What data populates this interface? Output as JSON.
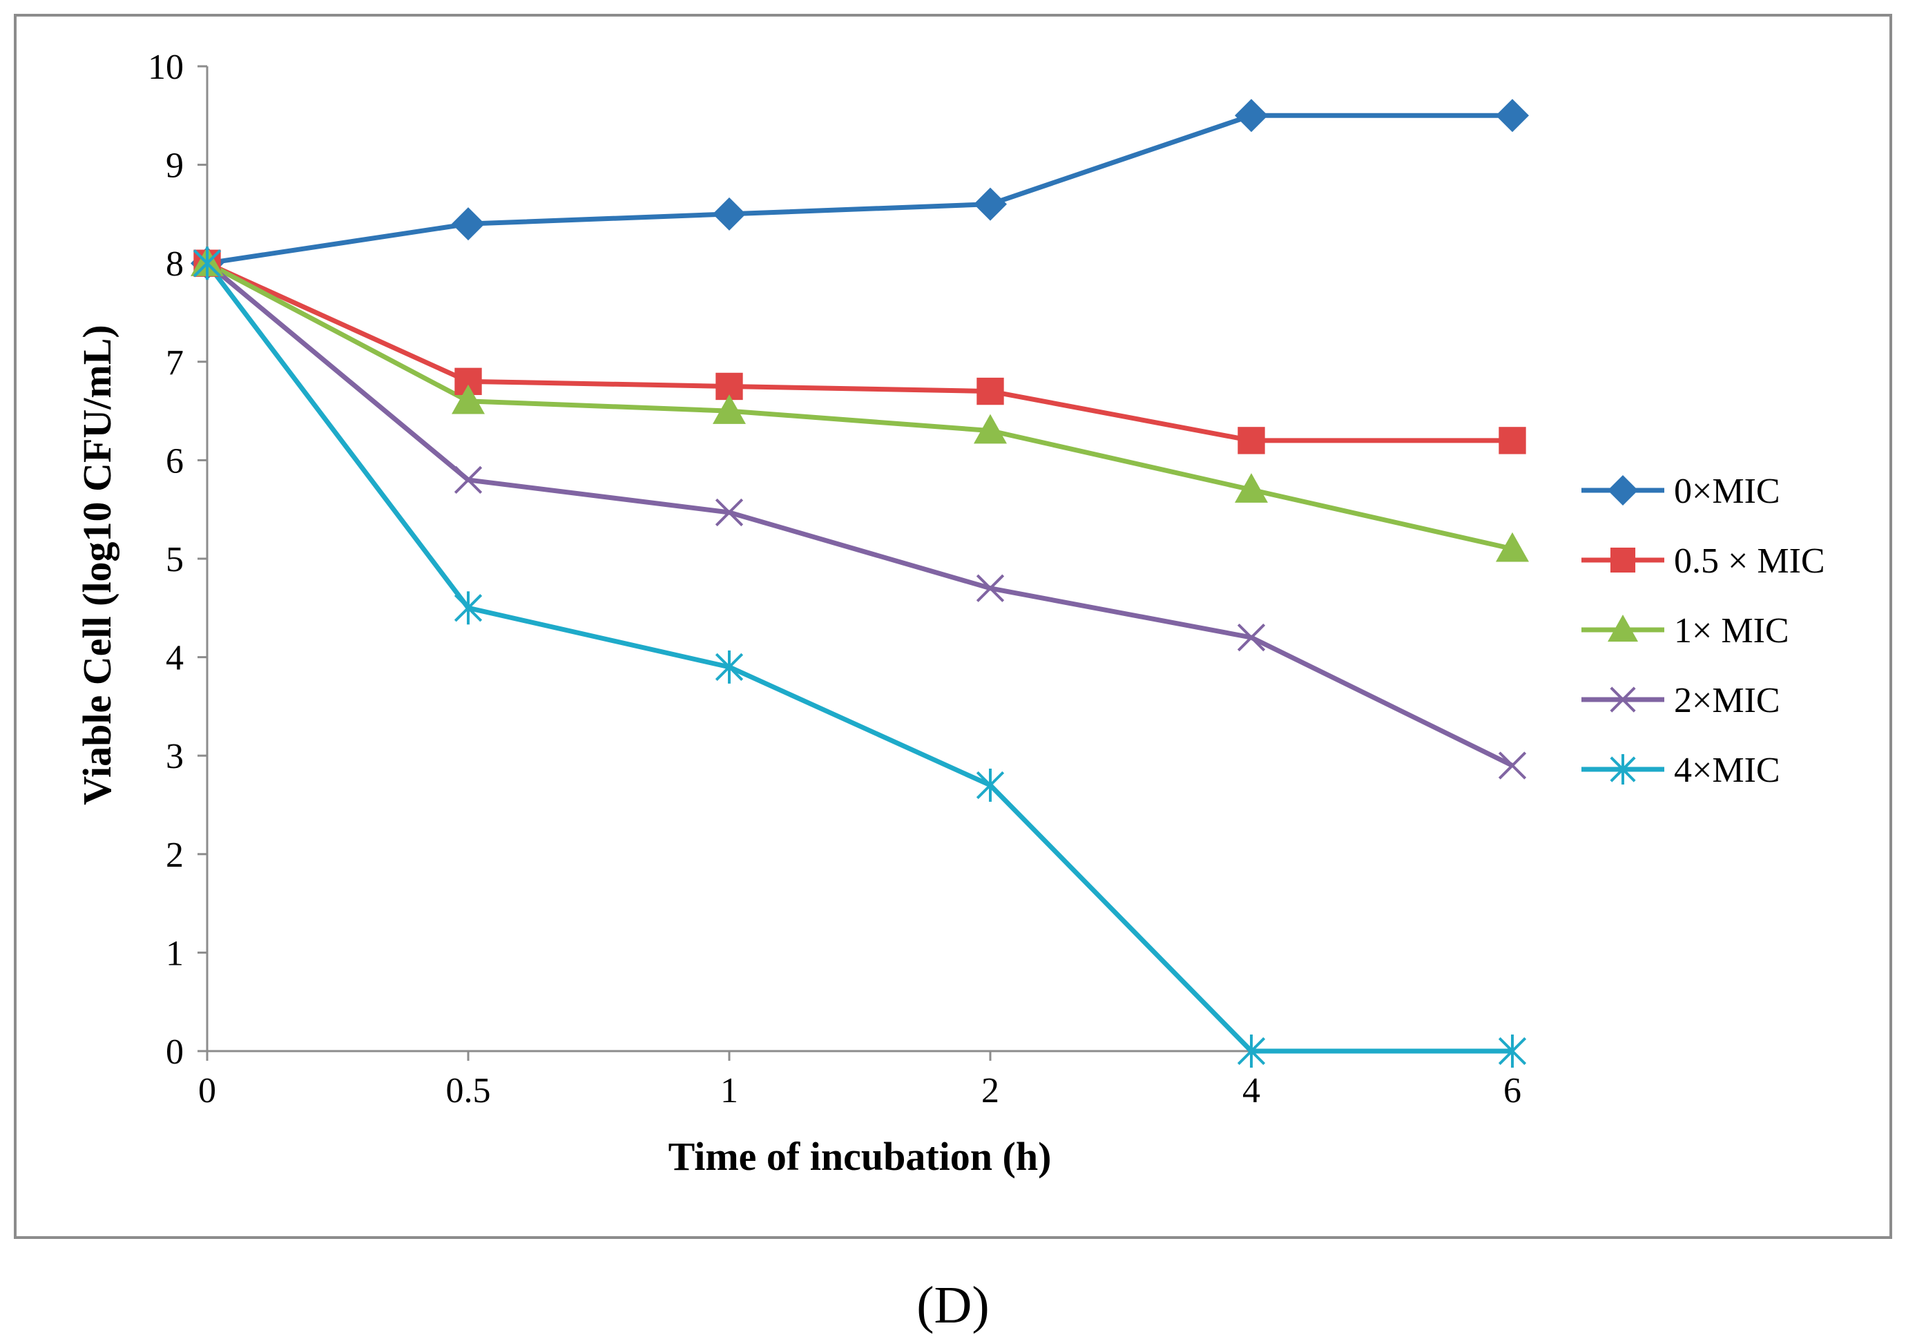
{
  "chart_data": {
    "type": "line",
    "title": "",
    "xlabel": "Time of incubation (h)",
    "ylabel": "Viable Cell (log10 CFU/mL)",
    "categories": [
      "0",
      "0.5",
      "1",
      "2",
      "4",
      "6"
    ],
    "ylim": [
      0,
      10
    ],
    "yticks": [
      "0",
      "1",
      "2",
      "3",
      "4",
      "5",
      "6",
      "7",
      "8",
      "9",
      "10"
    ],
    "grid": false,
    "legend_position": "right",
    "series": [
      {
        "name": "0×MIC",
        "color": "#2E75B6",
        "marker": "diamond",
        "values": [
          8.0,
          8.4,
          8.5,
          8.6,
          9.5,
          9.5
        ]
      },
      {
        "name": "0.5 × MIC",
        "color": "#E04646",
        "marker": "square",
        "values": [
          8.0,
          6.8,
          6.75,
          6.7,
          6.2,
          6.2
        ]
      },
      {
        "name": "1× MIC",
        "color": "#8DBE4A",
        "marker": "triangle",
        "values": [
          8.0,
          6.6,
          6.5,
          6.3,
          5.7,
          5.1
        ]
      },
      {
        "name": "2×MIC",
        "color": "#8064A2",
        "marker": "x",
        "values": [
          8.0,
          5.8,
          5.47,
          4.7,
          4.2,
          2.9
        ]
      },
      {
        "name": "4×MIC",
        "color": "#1EAAC9",
        "marker": "star",
        "values": [
          8.0,
          4.5,
          3.9,
          2.7,
          0.0,
          0.0
        ]
      }
    ]
  },
  "panel_label": "(D)"
}
